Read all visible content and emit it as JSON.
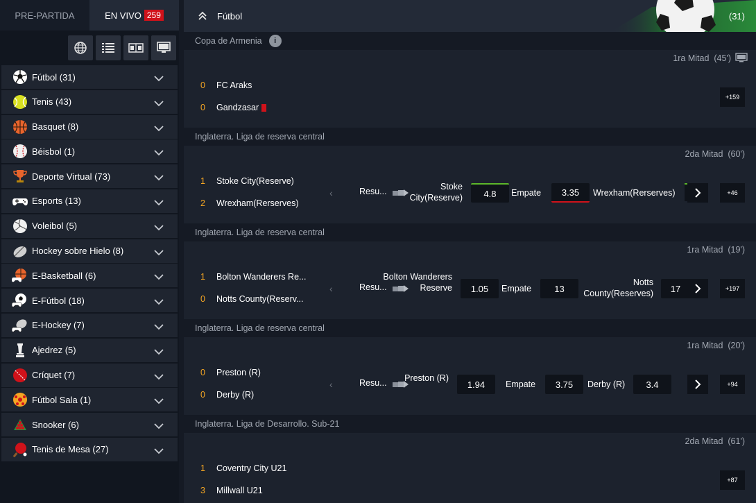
{
  "mode_tabs": {
    "pre_label": "PRE-PARTIDA",
    "live_label": "EN VIVO",
    "live_count": "259"
  },
  "view_icons": [
    "globe-icon",
    "list-icon",
    "scoreboard-icon",
    "monitor-icon"
  ],
  "sports": [
    {
      "label": "Fútbol (31)",
      "icon": "soccer-ball-icon",
      "color": "#ffffff"
    },
    {
      "label": "Tenis (43)",
      "icon": "tennis-ball-icon",
      "color": "#d9e021"
    },
    {
      "label": "Basquet (8)",
      "icon": "basketball-icon",
      "color": "#e8642c"
    },
    {
      "label": "Béisbol (1)",
      "icon": "baseball-icon",
      "color": "#f0f0f0"
    },
    {
      "label": "Deporte Virtual (73)",
      "icon": "trophy-icon",
      "color": "#e8642c"
    },
    {
      "label": "Esports (13)",
      "icon": "gamepad-icon",
      "color": "#ffffff"
    },
    {
      "label": "Voleibol (5)",
      "icon": "volleyball-icon",
      "color": "#f0f0f0"
    },
    {
      "label": "Hockey sobre Hielo (8)",
      "icon": "hockey-icon",
      "color": "#cfcfcf"
    },
    {
      "label": "E-Basketball (6)",
      "icon": "e-basketball-icon",
      "color": "#e8642c"
    },
    {
      "label": "E-Fútbol (18)",
      "icon": "e-soccer-icon",
      "color": "#ffffff"
    },
    {
      "label": "E-Hockey (7)",
      "icon": "e-hockey-icon",
      "color": "#cfcfcf"
    },
    {
      "label": "Ajedrez (5)",
      "icon": "chess-icon",
      "color": "#f0f0f0"
    },
    {
      "label": "Críquet (7)",
      "icon": "cricket-ball-icon",
      "color": "#d0121a"
    },
    {
      "label": "Fútbol Sala (1)",
      "icon": "futsal-ball-icon",
      "color": "#f5a623"
    },
    {
      "label": "Snooker (6)",
      "icon": "snooker-icon",
      "color": "#2e8b3d"
    },
    {
      "label": "Tenis de Mesa (27)",
      "icon": "table-tennis-icon",
      "color": "#d0121a"
    }
  ],
  "header": {
    "title": "Fútbol",
    "count": "(31)"
  },
  "matches": [
    {
      "league": "Copa de Armenia",
      "has_info": true,
      "period": "1ra Mitad",
      "minute": "(45')",
      "has_tv": true,
      "team1": {
        "score": "0",
        "name": "FC Araks"
      },
      "team2": {
        "score": "0",
        "name": "Gandzasar"
      },
      "more": "+159"
    },
    {
      "league": "Inglaterra. Liga de reserva central",
      "period": "2da Mitad",
      "minute": "(60')",
      "team1": {
        "score": "1",
        "name": "Stoke City(Reserve)"
      },
      "team2": {
        "score": "2",
        "name": "Wrexham(Rerserves)"
      },
      "market": "Resu...",
      "home_label": "Stoke City(Reserve)",
      "home_odd": "4.8",
      "draw_label": "Empate",
      "draw_odd": "3.35",
      "away_label": "Wrexham(Rerserves)",
      "more": "+46"
    },
    {
      "league": "Inglaterra. Liga de reserva central",
      "period": "1ra Mitad",
      "minute": "(19')",
      "team1": {
        "score": "1",
        "name": "Bolton Wanderers Re..."
      },
      "team2": {
        "score": "0",
        "name": "Notts County(Reserv..."
      },
      "market": "Resu...",
      "home_label": "Bolton Wanderers Reserve",
      "home_odd": "1.05",
      "draw_label": "Empate",
      "draw_odd": "13",
      "away_label": "Notts County(Reserves)",
      "away_odd": "17",
      "more": "+197"
    },
    {
      "league": "Inglaterra. Liga de reserva central",
      "period": "1ra Mitad",
      "minute": "(20')",
      "team1": {
        "score": "0",
        "name": "Preston (R)"
      },
      "team2": {
        "score": "0",
        "name": "Derby (R)"
      },
      "market": "Resu...",
      "home_label": "Preston (R)",
      "home_odd": "1.94",
      "draw_label": "Empate",
      "draw_odd": "3.75",
      "away_label": "Derby (R)",
      "away_odd": "3.4",
      "more": "+94"
    },
    {
      "league": "Inglaterra. Liga de Desarrollo. Sub-21",
      "period": "2da Mitad",
      "minute": "(61')",
      "team1": {
        "score": "1",
        "name": "Coventry City U21"
      },
      "team2": {
        "score": "3",
        "name": "Millwall U21"
      },
      "more": "+87"
    }
  ]
}
